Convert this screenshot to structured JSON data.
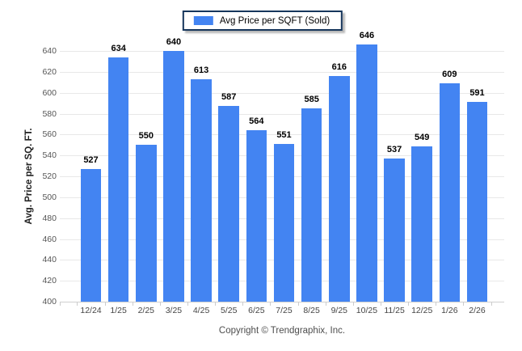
{
  "page": {
    "background_color": "#ffffff"
  },
  "legend": {
    "label": "Avg Price per SQFT (Sold)",
    "swatch_color": "#4384f2",
    "border_color": "#16365c"
  },
  "footer": {
    "text": "Copyright © Trendgraphix, Inc."
  },
  "chart_data": {
    "type": "bar",
    "title": "",
    "series_name": "Avg Price per SQFT (Sold)",
    "categories": [
      "12/24",
      "1/25",
      "2/25",
      "3/25",
      "4/25",
      "5/25",
      "6/25",
      "7/25",
      "8/25",
      "9/25",
      "10/25",
      "11/25",
      "12/25",
      "1/26",
      "2/26"
    ],
    "values": [
      527,
      634,
      550,
      640,
      613,
      587,
      564,
      551,
      585,
      616,
      646,
      537,
      549,
      609,
      591
    ],
    "xlabel": "",
    "ylabel": "Avg. Price per SQ. FT.",
    "ylim": [
      400,
      650
    ],
    "ytick_step": 20,
    "yticks": [
      400,
      420,
      440,
      460,
      480,
      500,
      520,
      540,
      560,
      580,
      600,
      620,
      640
    ],
    "bar_color": "#4384f2",
    "grid": true,
    "value_labels": true,
    "legend_position": "top-center"
  }
}
